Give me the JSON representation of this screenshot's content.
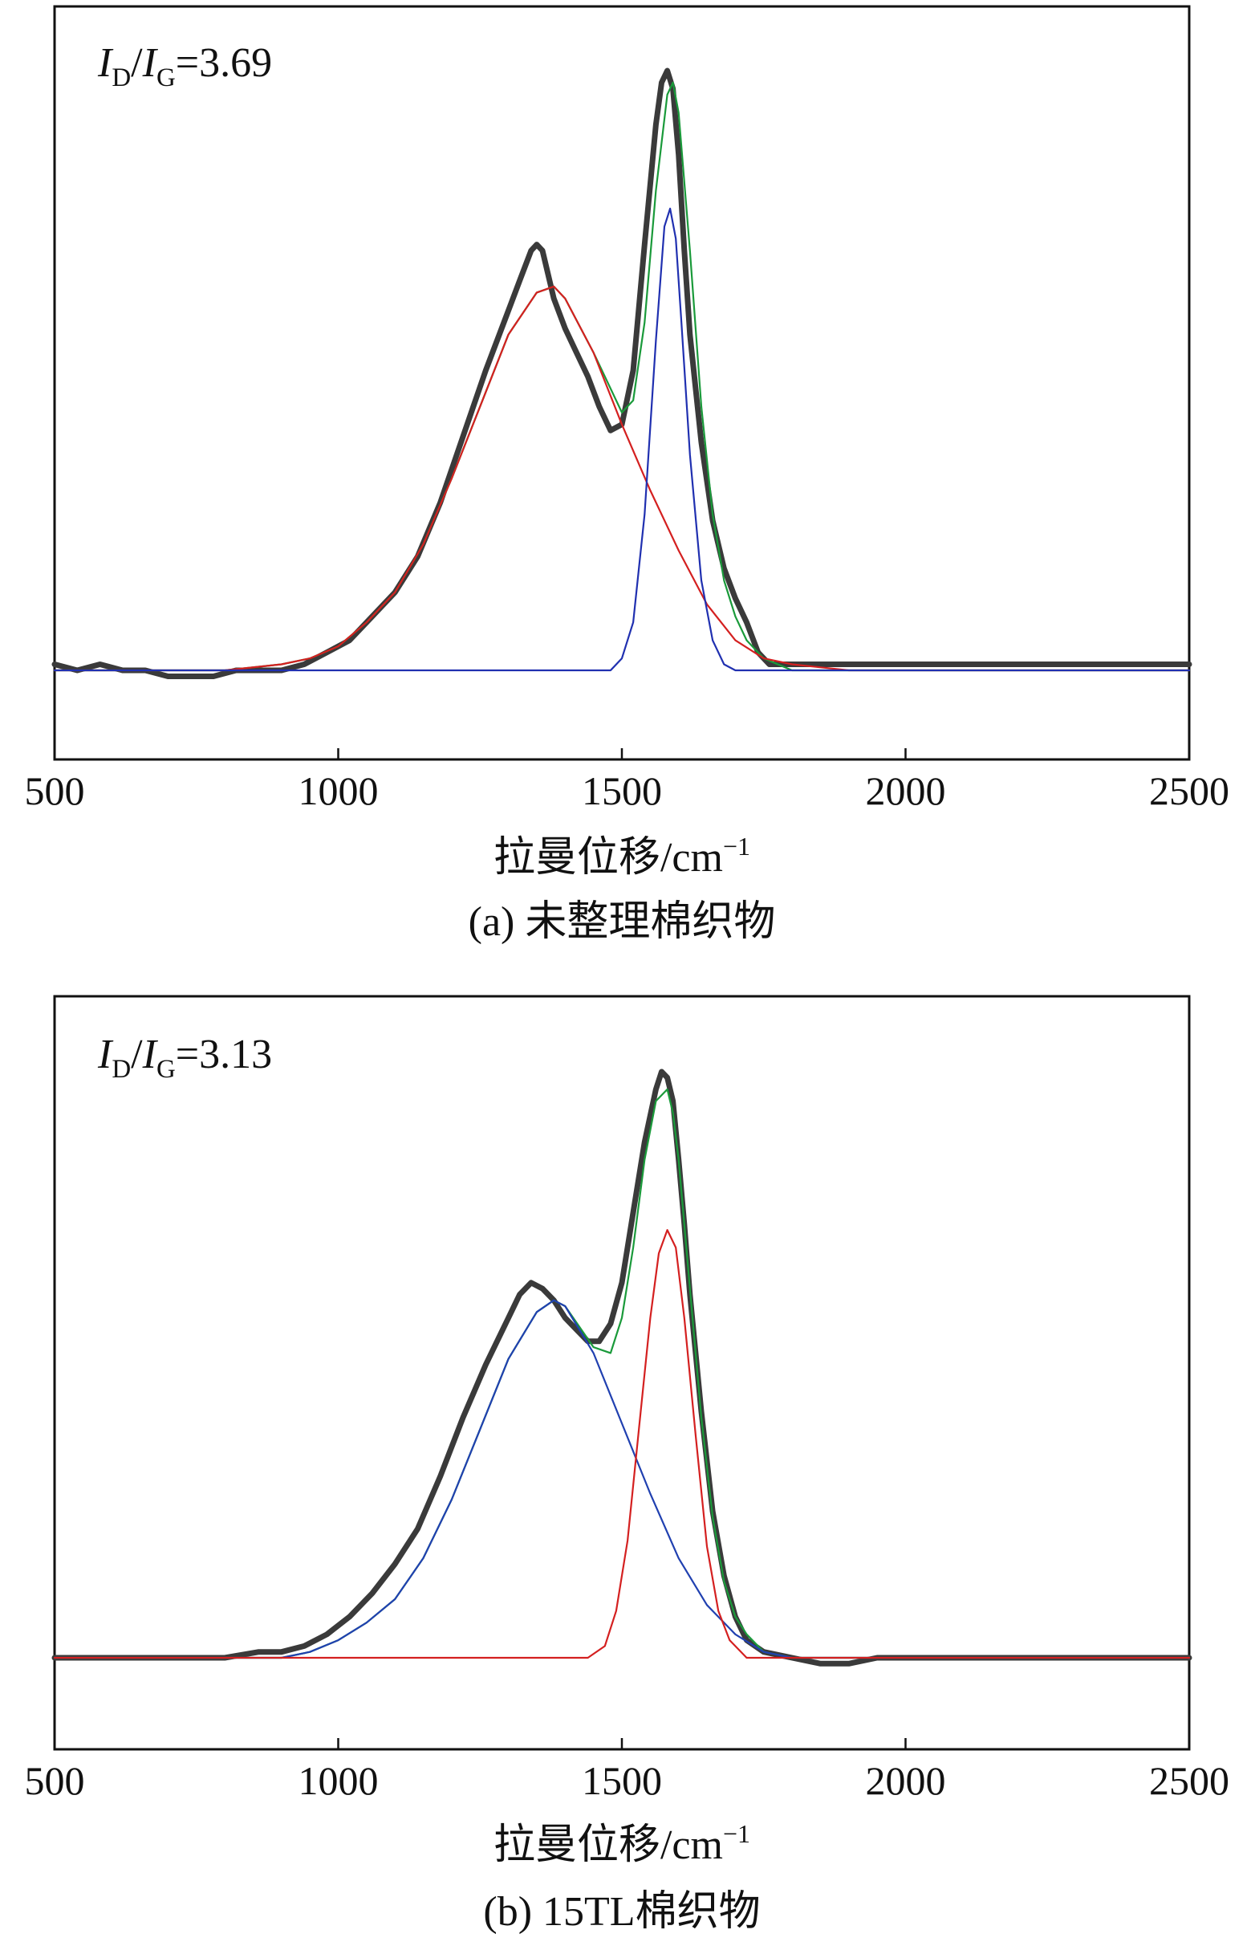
{
  "chart_data": [
    {
      "type": "line",
      "caption": "(a) 未整理棉织物",
      "xlabel_base": "拉曼位移/cm",
      "xlabel_sup": "−1",
      "xlim": [
        500,
        2500
      ],
      "xticks": [
        500,
        1000,
        1500,
        2000,
        2500
      ],
      "annotation": {
        "i": "I",
        "sub1": "D",
        "slash": "/",
        "sub2": "G",
        "value": "=3.69"
      },
      "colors": {
        "measured": "#3a3a3a",
        "fit": "#1a9a3a",
        "d_band": "#d42020",
        "g_band": "#2030b0"
      },
      "series": [
        {
          "key": "measured",
          "x": [
            500,
            540,
            580,
            620,
            660,
            700,
            740,
            780,
            820,
            860,
            900,
            940,
            980,
            1020,
            1060,
            1100,
            1140,
            1180,
            1220,
            1260,
            1300,
            1320,
            1340,
            1350,
            1360,
            1380,
            1400,
            1420,
            1440,
            1460,
            1480,
            1500,
            1520,
            1540,
            1560,
            1570,
            1580,
            1590,
            1600,
            1610,
            1620,
            1640,
            1660,
            1680,
            1700,
            1720,
            1740,
            1760,
            1800,
            1900,
            2000,
            2100,
            2200,
            2300,
            2400,
            2500
          ],
          "y": [
            0.01,
            0.0,
            0.01,
            0.0,
            0.0,
            -0.01,
            -0.01,
            -0.01,
            0.0,
            0.0,
            0.0,
            0.01,
            0.03,
            0.05,
            0.09,
            0.13,
            0.19,
            0.28,
            0.39,
            0.5,
            0.6,
            0.65,
            0.7,
            0.71,
            0.7,
            0.62,
            0.57,
            0.53,
            0.49,
            0.44,
            0.4,
            0.41,
            0.5,
            0.71,
            0.91,
            0.98,
            1.0,
            0.97,
            0.86,
            0.7,
            0.56,
            0.38,
            0.25,
            0.17,
            0.12,
            0.08,
            0.03,
            0.01,
            0.01,
            0.01,
            0.01,
            0.01,
            0.01,
            0.01,
            0.01,
            0.01
          ]
        },
        {
          "key": "fit",
          "x": [
            500,
            600,
            700,
            800,
            900,
            950,
            1000,
            1050,
            1100,
            1150,
            1200,
            1250,
            1300,
            1350,
            1380,
            1400,
            1450,
            1500,
            1520,
            1540,
            1560,
            1580,
            1590,
            1600,
            1620,
            1640,
            1660,
            1680,
            1700,
            1720,
            1750,
            1800,
            2000,
            2500
          ],
          "y": [
            0.0,
            0.0,
            0.0,
            0.0,
            0.01,
            0.02,
            0.04,
            0.08,
            0.13,
            0.21,
            0.32,
            0.44,
            0.56,
            0.63,
            0.64,
            0.62,
            0.53,
            0.43,
            0.45,
            0.58,
            0.8,
            0.96,
            0.98,
            0.93,
            0.7,
            0.44,
            0.26,
            0.15,
            0.09,
            0.05,
            0.02,
            0.0,
            0.0,
            0.0
          ]
        },
        {
          "key": "d_band",
          "x": [
            500,
            600,
            700,
            800,
            900,
            950,
            1000,
            1050,
            1100,
            1150,
            1200,
            1250,
            1300,
            1350,
            1380,
            1400,
            1450,
            1500,
            1550,
            1600,
            1650,
            1700,
            1750,
            1800,
            1900,
            2000,
            2500
          ],
          "y": [
            0.0,
            0.0,
            0.0,
            0.0,
            0.01,
            0.02,
            0.04,
            0.08,
            0.13,
            0.21,
            0.32,
            0.44,
            0.56,
            0.63,
            0.64,
            0.62,
            0.53,
            0.41,
            0.3,
            0.2,
            0.11,
            0.05,
            0.02,
            0.01,
            0.0,
            0.0,
            0.0
          ]
        },
        {
          "key": "g_band",
          "x": [
            500,
            1450,
            1480,
            1500,
            1520,
            1540,
            1560,
            1575,
            1585,
            1595,
            1605,
            1620,
            1640,
            1660,
            1680,
            1700,
            1720,
            2500
          ],
          "y": [
            0.0,
            0.0,
            0.0,
            0.02,
            0.08,
            0.26,
            0.55,
            0.74,
            0.77,
            0.72,
            0.58,
            0.36,
            0.15,
            0.05,
            0.01,
            0.0,
            0.0,
            0.0
          ]
        }
      ]
    },
    {
      "type": "line",
      "caption": "(b) 15TL棉织物",
      "xlabel_base": "拉曼位移/cm",
      "xlabel_sup": "−1",
      "xlim": [
        500,
        2500
      ],
      "xticks": [
        500,
        1000,
        1500,
        2000,
        2500
      ],
      "annotation": {
        "i": "I",
        "sub1": "D",
        "slash": "/",
        "sub2": "G",
        "value": "=3.13"
      },
      "colors": {
        "measured": "#3a3a3a",
        "fit": "#1a9a3a",
        "d_band": "#2040b0",
        "g_band": "#d42020"
      },
      "series": [
        {
          "key": "measured",
          "x": [
            500,
            560,
            620,
            680,
            740,
            800,
            860,
            900,
            940,
            980,
            1020,
            1060,
            1100,
            1140,
            1180,
            1220,
            1260,
            1300,
            1320,
            1340,
            1360,
            1380,
            1400,
            1420,
            1440,
            1460,
            1480,
            1500,
            1520,
            1540,
            1560,
            1570,
            1580,
            1590,
            1600,
            1610,
            1620,
            1640,
            1660,
            1680,
            1700,
            1720,
            1750,
            1800,
            1850,
            1900,
            1950,
            2000,
            2100,
            2200,
            2300,
            2400,
            2500
          ],
          "y": [
            0.0,
            0.0,
            0.0,
            0.0,
            0.0,
            0.0,
            0.01,
            0.01,
            0.02,
            0.04,
            0.07,
            0.11,
            0.16,
            0.22,
            0.31,
            0.41,
            0.5,
            0.58,
            0.62,
            0.64,
            0.63,
            0.61,
            0.58,
            0.56,
            0.54,
            0.54,
            0.57,
            0.64,
            0.76,
            0.88,
            0.97,
            1.0,
            0.99,
            0.95,
            0.85,
            0.74,
            0.62,
            0.42,
            0.25,
            0.14,
            0.07,
            0.03,
            0.01,
            0.0,
            -0.01,
            -0.01,
            0.0,
            0.0,
            0.0,
            0.0,
            0.0,
            0.0,
            0.0
          ]
        },
        {
          "key": "fit",
          "x": [
            500,
            600,
            700,
            800,
            900,
            950,
            1000,
            1050,
            1100,
            1150,
            1200,
            1250,
            1300,
            1350,
            1380,
            1400,
            1450,
            1480,
            1500,
            1520,
            1540,
            1560,
            1580,
            1590,
            1600,
            1620,
            1640,
            1660,
            1680,
            1700,
            1720,
            1750,
            1800,
            2000,
            2500
          ],
          "y": [
            0.0,
            0.0,
            0.0,
            0.0,
            0.0,
            0.01,
            0.03,
            0.06,
            0.1,
            0.17,
            0.27,
            0.39,
            0.51,
            0.59,
            0.61,
            0.6,
            0.53,
            0.52,
            0.58,
            0.7,
            0.85,
            0.95,
            0.97,
            0.93,
            0.85,
            0.63,
            0.41,
            0.24,
            0.13,
            0.07,
            0.04,
            0.01,
            0.0,
            0.0,
            0.0
          ]
        },
        {
          "key": "d_band",
          "x": [
            500,
            700,
            800,
            900,
            950,
            1000,
            1050,
            1100,
            1150,
            1200,
            1250,
            1300,
            1350,
            1380,
            1400,
            1450,
            1500,
            1550,
            1600,
            1650,
            1700,
            1750,
            1800,
            1900,
            2500
          ],
          "y": [
            0.0,
            0.0,
            0.0,
            0.0,
            0.01,
            0.03,
            0.06,
            0.1,
            0.17,
            0.27,
            0.39,
            0.51,
            0.59,
            0.61,
            0.6,
            0.52,
            0.4,
            0.28,
            0.17,
            0.09,
            0.04,
            0.01,
            0.0,
            0.0,
            0.0
          ]
        },
        {
          "key": "g_band",
          "x": [
            500,
            1440,
            1470,
            1490,
            1510,
            1530,
            1550,
            1565,
            1580,
            1595,
            1610,
            1630,
            1650,
            1670,
            1690,
            1720,
            2500
          ],
          "y": [
            0.0,
            0.0,
            0.02,
            0.08,
            0.2,
            0.39,
            0.58,
            0.69,
            0.73,
            0.7,
            0.58,
            0.38,
            0.19,
            0.08,
            0.03,
            0.0,
            0.0
          ]
        }
      ]
    }
  ]
}
